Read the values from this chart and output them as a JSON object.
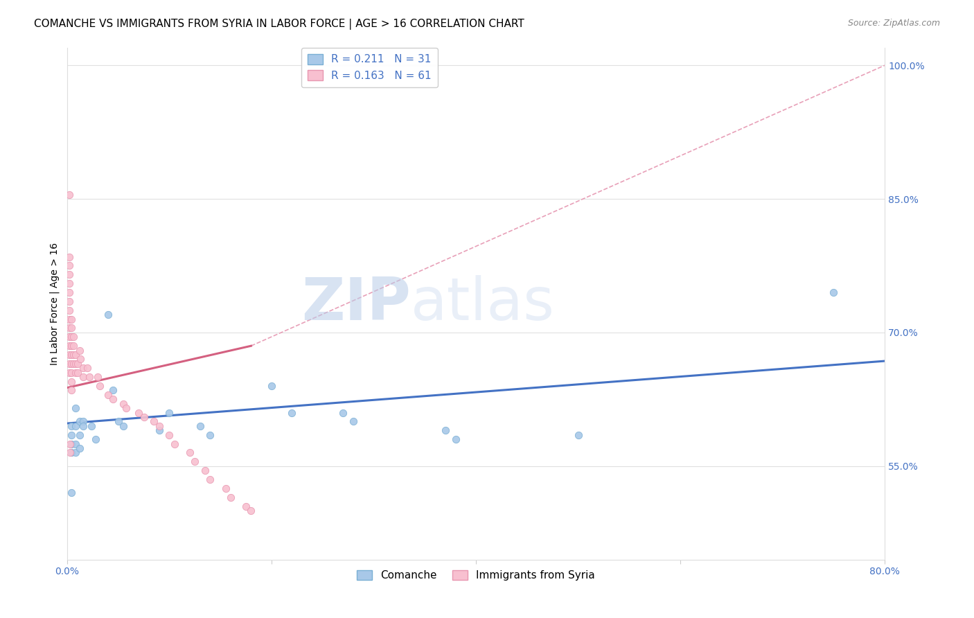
{
  "title": "COMANCHE VS IMMIGRANTS FROM SYRIA IN LABOR FORCE | AGE > 16 CORRELATION CHART",
  "source": "Source: ZipAtlas.com",
  "ylabel": "In Labor Force | Age > 16",
  "xlim": [
    0.0,
    0.8
  ],
  "ylim": [
    0.445,
    1.02
  ],
  "xticks": [
    0.0,
    0.2,
    0.4,
    0.6,
    0.8
  ],
  "xtick_labels": [
    "0.0%",
    "",
    "",
    "",
    "80.0%"
  ],
  "ytick_labels": [
    "55.0%",
    "70.0%",
    "85.0%",
    "100.0%"
  ],
  "yticks": [
    0.55,
    0.7,
    0.85,
    1.0
  ],
  "comanche_x": [
    0.004,
    0.004,
    0.004,
    0.004,
    0.004,
    0.008,
    0.008,
    0.008,
    0.008,
    0.012,
    0.012,
    0.012,
    0.016,
    0.016,
    0.024,
    0.028,
    0.04,
    0.045,
    0.05,
    0.055,
    0.09,
    0.1,
    0.13,
    0.14,
    0.2,
    0.22,
    0.27,
    0.28,
    0.37,
    0.38,
    0.5,
    0.75
  ],
  "comanche_y": [
    0.595,
    0.585,
    0.575,
    0.565,
    0.52,
    0.615,
    0.595,
    0.575,
    0.565,
    0.6,
    0.585,
    0.57,
    0.6,
    0.595,
    0.595,
    0.58,
    0.72,
    0.635,
    0.6,
    0.595,
    0.59,
    0.61,
    0.595,
    0.585,
    0.64,
    0.61,
    0.61,
    0.6,
    0.59,
    0.58,
    0.585,
    0.745
  ],
  "syria_x": [
    0.002,
    0.002,
    0.002,
    0.002,
    0.002,
    0.002,
    0.002,
    0.002,
    0.002,
    0.002,
    0.002,
    0.002,
    0.002,
    0.002,
    0.002,
    0.004,
    0.004,
    0.004,
    0.004,
    0.004,
    0.004,
    0.004,
    0.004,
    0.004,
    0.006,
    0.006,
    0.006,
    0.006,
    0.008,
    0.008,
    0.008,
    0.01,
    0.01,
    0.012,
    0.013,
    0.016,
    0.016,
    0.02,
    0.022,
    0.03,
    0.032,
    0.04,
    0.045,
    0.055,
    0.058,
    0.07,
    0.075,
    0.085,
    0.09,
    0.1,
    0.105,
    0.12,
    0.125,
    0.135,
    0.14,
    0.155,
    0.16,
    0.175,
    0.18,
    0.003,
    0.003
  ],
  "syria_y": [
    0.855,
    0.785,
    0.775,
    0.765,
    0.755,
    0.745,
    0.735,
    0.725,
    0.715,
    0.705,
    0.695,
    0.685,
    0.675,
    0.665,
    0.655,
    0.715,
    0.705,
    0.695,
    0.685,
    0.675,
    0.665,
    0.655,
    0.645,
    0.635,
    0.695,
    0.685,
    0.675,
    0.665,
    0.675,
    0.665,
    0.655,
    0.665,
    0.655,
    0.68,
    0.67,
    0.66,
    0.65,
    0.66,
    0.65,
    0.65,
    0.64,
    0.63,
    0.625,
    0.62,
    0.615,
    0.61,
    0.605,
    0.6,
    0.595,
    0.585,
    0.575,
    0.565,
    0.555,
    0.545,
    0.535,
    0.525,
    0.515,
    0.505,
    0.5,
    0.575,
    0.565
  ],
  "blue_line_x": [
    0.0,
    0.8
  ],
  "blue_line_y": [
    0.598,
    0.668
  ],
  "pink_line_x": [
    0.0,
    0.18
  ],
  "pink_line_y": [
    0.638,
    0.685
  ],
  "ref_line_x": [
    0.18,
    0.8
  ],
  "ref_line_y": [
    0.685,
    1.0
  ],
  "dot_size": 55,
  "blue_color": "#a8c8e8",
  "blue_edge_color": "#7aafd4",
  "pink_color": "#f8c0d0",
  "pink_edge_color": "#e896b0",
  "blue_line_color": "#4472c4",
  "pink_line_color": "#d46080",
  "ref_line_color": "#e8a0b8",
  "axis_color": "#4472c4",
  "grid_color": "#e0e0e0",
  "watermark_zip": "ZIP",
  "watermark_atlas": "atlas",
  "title_fontsize": 11,
  "axis_label_fontsize": 10,
  "tick_fontsize": 10
}
